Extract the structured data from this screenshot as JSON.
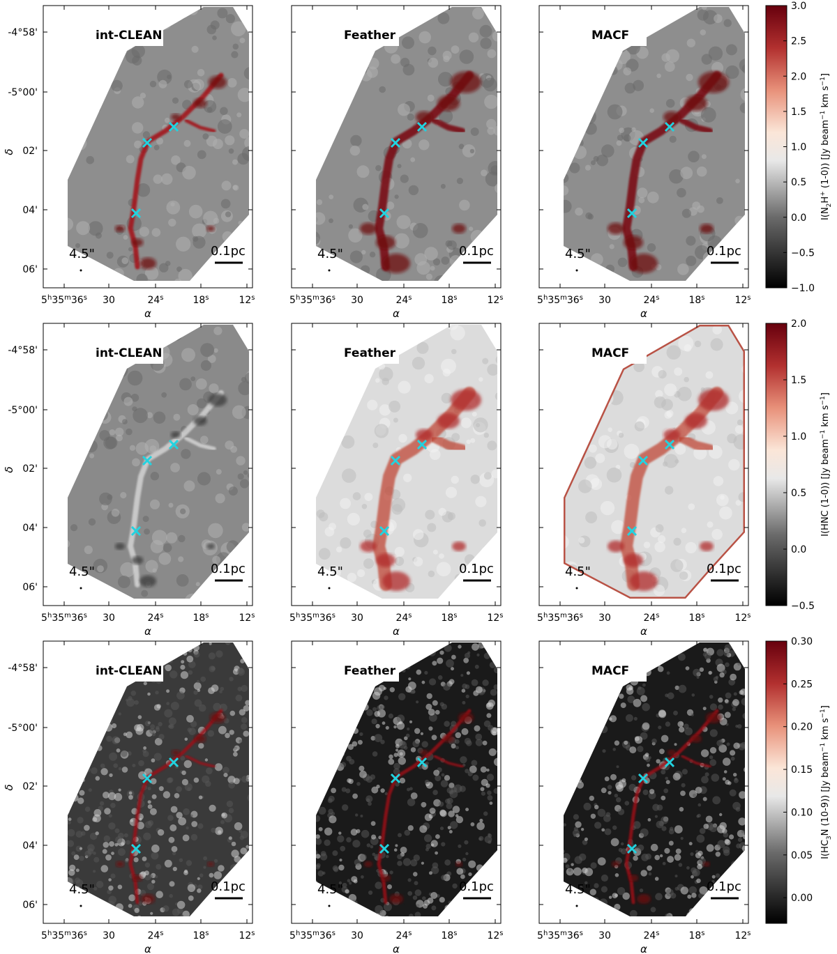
{
  "figure": {
    "panel_labels": [
      "int-CLEAN",
      "Feather",
      "MACF"
    ],
    "beam_label": "4.5\"",
    "scalebar_label": "0.1pc",
    "xlabel": "α",
    "ylabel": "δ",
    "xticks": {
      "first": {
        "h": "h",
        "m": "m",
        "s": "s",
        "v1": "5",
        "v2": "35",
        "v3": "36"
      },
      "rest": [
        "30",
        "24",
        "18",
        "12"
      ],
      "sec_mark": "s"
    },
    "yticks": [
      "-4°58'",
      "-5°00'",
      "02'",
      "04'",
      "06'"
    ],
    "marker_color": "#22d3e0",
    "colormap": [
      "#000000",
      "#ffffff",
      "#67000d"
    ]
  },
  "rows": [
    {
      "cbar_label_parts": [
        "I(N",
        "2",
        "H",
        "+",
        " (1-0)) [Jy beam",
        "−1",
        " km s",
        "−1",
        "]"
      ],
      "cbar_ticks": [
        "3.0",
        "2.5",
        "2.0",
        "1.5",
        "1.0",
        "0.5",
        "0.0",
        "−0.5",
        "−1.0"
      ],
      "cbar_range": [
        -1.0,
        3.0
      ]
    },
    {
      "cbar_label_parts": [
        "I(HNC (1-0)) [Jy beam",
        "−1",
        " km s",
        "−1",
        "]"
      ],
      "cbar_ticks": [
        "2.0",
        "1.5",
        "1.0",
        "0.5",
        "0.0",
        "−0.5"
      ],
      "cbar_range": [
        -0.5,
        2.0
      ]
    },
    {
      "cbar_label_parts": [
        "I(HC",
        "3",
        "N (10-9)) [Jy beam",
        "−1",
        " km s",
        "−1",
        "]"
      ],
      "cbar_ticks": [
        "0.30",
        "0.25",
        "0.20",
        "0.15",
        "0.10",
        "0.05",
        "0.00"
      ],
      "cbar_range": [
        -0.03,
        0.3
      ]
    }
  ]
}
